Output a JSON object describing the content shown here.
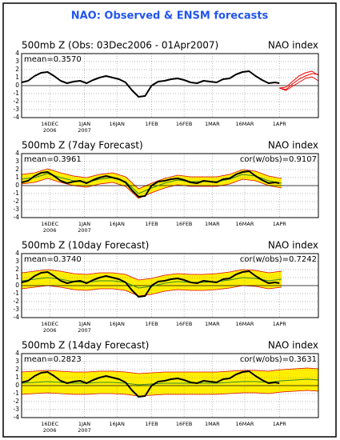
{
  "title": "NAO: Observed & ENSM forecasts",
  "chart_data": [
    {
      "type": "line",
      "title": "500mb Z (Obs: 03Dec2006 - 01Apr2007)",
      "index_label": "NAO index",
      "mean_label": "mean=0.3570",
      "xlim": [
        0,
        137
      ],
      "ylim": [
        -4,
        4
      ],
      "yticks": [
        -4,
        -3,
        -2,
        -1,
        0,
        1,
        2,
        3,
        4
      ],
      "grid": true,
      "xticks": [
        {
          "value": 13,
          "label": "16DEC\n2006"
        },
        {
          "value": 29,
          "label": "1JAN\n2007"
        },
        {
          "value": 44,
          "label": "16JAN"
        },
        {
          "value": 60,
          "label": "1FEB"
        },
        {
          "value": 75,
          "label": "16FEB"
        },
        {
          "value": 88,
          "label": "1MAR"
        },
        {
          "value": 103,
          "label": "16MAR"
        },
        {
          "value": 119,
          "label": "1APR"
        }
      ],
      "bands": [],
      "series": [
        {
          "color": "#000000",
          "width": 2,
          "x": [
            0,
            3,
            6,
            9,
            12,
            15,
            18,
            21,
            24,
            27,
            30,
            33,
            36,
            39,
            42,
            45,
            48,
            51,
            54,
            57,
            60,
            63,
            66,
            69,
            72,
            75,
            78,
            81,
            84,
            87,
            90,
            93,
            96,
            99,
            102,
            105,
            108,
            111,
            114,
            117,
            119
          ],
          "values": [
            0.4,
            0.6,
            1.2,
            1.6,
            1.7,
            1.2,
            0.6,
            0.3,
            0.5,
            0.6,
            0.3,
            0.7,
            1.0,
            1.2,
            1.0,
            0.8,
            0.4,
            -0.6,
            -1.4,
            -1.3,
            0.0,
            0.5,
            0.6,
            0.8,
            0.9,
            0.7,
            0.4,
            0.3,
            0.6,
            0.5,
            0.4,
            0.8,
            0.9,
            1.4,
            1.7,
            1.8,
            1.2,
            0.7,
            0.3,
            0.4,
            0.3
          ]
        },
        {
          "color": "#ee0000",
          "width": 1,
          "x": [
            119,
            122,
            125,
            128,
            131,
            134,
            137
          ],
          "values": [
            -0.3,
            -0.5,
            0.2,
            0.8,
            1.2,
            1.5,
            1.4
          ]
        },
        {
          "color": "#ee0000",
          "width": 1,
          "x": [
            119,
            122,
            125,
            128,
            131,
            134,
            137
          ],
          "values": [
            -0.3,
            -0.2,
            0.5,
            1.2,
            1.6,
            1.8,
            1.3
          ]
        },
        {
          "color": "#ee0000",
          "width": 1,
          "x": [
            119,
            122,
            125,
            128,
            131,
            134,
            137
          ],
          "values": [
            -0.3,
            -0.6,
            -0.1,
            0.4,
            0.9,
            1.1,
            0.6
          ]
        }
      ]
    },
    {
      "type": "line",
      "title": "500mb Z (7day Forecast)",
      "index_label": "NAO index",
      "mean_label": "mean=0.3961",
      "cor_label": "cor(w/obs)=0.9107",
      "xlim": [
        0,
        137
      ],
      "ylim": [
        -4,
        4
      ],
      "yticks": [
        -4,
        -3,
        -2,
        -1,
        0,
        1,
        2,
        3,
        4
      ],
      "grid": true,
      "xticks": [
        {
          "value": 13,
          "label": "16DEC\n2006"
        },
        {
          "value": 29,
          "label": "1JAN\n2007"
        },
        {
          "value": 44,
          "label": "16JAN"
        },
        {
          "value": 60,
          "label": "1FEB"
        },
        {
          "value": 75,
          "label": "16FEB"
        },
        {
          "value": 88,
          "label": "1MAR"
        },
        {
          "value": 103,
          "label": "16MAR"
        },
        {
          "value": 119,
          "label": "1APR"
        }
      ],
      "bands": [
        {
          "color": "#ffee00",
          "edge_color": "#dd0000",
          "x": [
            0,
            6,
            12,
            18,
            24,
            30,
            36,
            42,
            48,
            54,
            60,
            66,
            72,
            78,
            84,
            90,
            96,
            102,
            108,
            114,
            120
          ],
          "lower": [
            0.2,
            0.4,
            0.9,
            0.4,
            0.0,
            -0.2,
            0.2,
            0.4,
            -0.1,
            -1.6,
            -0.9,
            -0.3,
            0.1,
            -0.1,
            -0.1,
            -0.1,
            0.2,
            0.8,
            0.6,
            0.0,
            -0.3
          ],
          "upper": [
            1.4,
            1.6,
            2.1,
            1.6,
            1.2,
            1.0,
            1.4,
            1.6,
            1.1,
            -0.4,
            0.3,
            0.9,
            1.3,
            1.1,
            1.1,
            1.1,
            1.4,
            2.0,
            1.8,
            1.2,
            0.9
          ]
        }
      ],
      "series": [
        {
          "color": "#2e8b2e",
          "width": 1,
          "x": [
            0,
            6,
            12,
            18,
            24,
            30,
            36,
            42,
            48,
            54,
            60,
            66,
            72,
            78,
            84,
            90,
            96,
            102,
            108,
            114,
            120
          ],
          "values": [
            0.8,
            1.0,
            1.5,
            1.0,
            0.6,
            0.4,
            0.8,
            1.0,
            0.5,
            -1.0,
            -0.3,
            0.3,
            0.7,
            0.5,
            0.5,
            0.5,
            0.8,
            1.4,
            1.2,
            0.6,
            0.3
          ]
        },
        {
          "color": "#000000",
          "width": 2,
          "x": [
            0,
            3,
            6,
            9,
            12,
            15,
            18,
            21,
            24,
            27,
            30,
            33,
            36,
            39,
            42,
            45,
            48,
            51,
            54,
            57,
            60,
            63,
            66,
            69,
            72,
            75,
            78,
            81,
            84,
            87,
            90,
            93,
            96,
            99,
            102,
            105,
            108,
            111,
            114,
            117,
            119
          ],
          "values": [
            0.4,
            0.6,
            1.2,
            1.6,
            1.7,
            1.2,
            0.6,
            0.3,
            0.5,
            0.6,
            0.3,
            0.7,
            1.0,
            1.2,
            1.0,
            0.8,
            0.4,
            -0.6,
            -1.4,
            -1.3,
            0.0,
            0.5,
            0.6,
            0.8,
            0.9,
            0.7,
            0.4,
            0.3,
            0.6,
            0.5,
            0.4,
            0.8,
            0.9,
            1.4,
            1.7,
            1.8,
            1.2,
            0.7,
            0.3,
            0.4,
            0.3
          ]
        }
      ]
    },
    {
      "type": "line",
      "title": "500mb Z (10day Forecast)",
      "index_label": "NAO index",
      "mean_label": "mean=0.3740",
      "cor_label": "cor(w/obs)=0.7242",
      "xlim": [
        0,
        137
      ],
      "ylim": [
        -4,
        4
      ],
      "yticks": [
        -4,
        -3,
        -2,
        -1,
        0,
        1,
        2,
        3,
        4
      ],
      "grid": true,
      "xticks": [
        {
          "value": 13,
          "label": "16DEC\n2006"
        },
        {
          "value": 29,
          "label": "1JAN\n2007"
        },
        {
          "value": 44,
          "label": "16JAN"
        },
        {
          "value": 60,
          "label": "1FEB"
        },
        {
          "value": 75,
          "label": "16FEB"
        },
        {
          "value": 88,
          "label": "1MAR"
        },
        {
          "value": 103,
          "label": "16MAR"
        },
        {
          "value": 119,
          "label": "1APR"
        }
      ],
      "bands": [
        {
          "color": "#ffee00",
          "edge_color": "#dd0000",
          "x": [
            0,
            6,
            12,
            18,
            24,
            30,
            36,
            42,
            48,
            54,
            60,
            66,
            72,
            78,
            84,
            90,
            96,
            102,
            108,
            114,
            120
          ],
          "lower": [
            -0.4,
            -0.2,
            0.0,
            -0.2,
            -0.5,
            -0.6,
            -0.4,
            -0.4,
            -0.6,
            -1.3,
            -1.1,
            -0.7,
            -0.5,
            -0.6,
            -0.6,
            -0.5,
            -0.3,
            0.0,
            -0.1,
            -0.4,
            -0.2
          ],
          "upper": [
            1.6,
            1.8,
            2.0,
            1.8,
            1.5,
            1.4,
            1.6,
            1.6,
            1.4,
            0.7,
            0.9,
            1.3,
            1.5,
            1.4,
            1.4,
            1.5,
            1.7,
            2.0,
            1.9,
            1.6,
            1.8
          ]
        }
      ],
      "series": [
        {
          "color": "#2e8b2e",
          "width": 1,
          "x": [
            0,
            6,
            12,
            18,
            24,
            30,
            36,
            42,
            48,
            54,
            60,
            66,
            72,
            78,
            84,
            90,
            96,
            102,
            108,
            114,
            120
          ],
          "values": [
            0.6,
            0.8,
            1.0,
            0.8,
            0.5,
            0.4,
            0.6,
            0.6,
            0.4,
            -0.3,
            -0.1,
            0.3,
            0.5,
            0.4,
            0.4,
            0.5,
            0.7,
            1.0,
            0.9,
            0.6,
            0.8
          ]
        },
        {
          "color": "#000000",
          "width": 2,
          "x": [
            0,
            3,
            6,
            9,
            12,
            15,
            18,
            21,
            24,
            27,
            30,
            33,
            36,
            39,
            42,
            45,
            48,
            51,
            54,
            57,
            60,
            63,
            66,
            69,
            72,
            75,
            78,
            81,
            84,
            87,
            90,
            93,
            96,
            99,
            102,
            105,
            108,
            111,
            114,
            117,
            119
          ],
          "values": [
            0.4,
            0.6,
            1.2,
            1.6,
            1.7,
            1.2,
            0.6,
            0.3,
            0.5,
            0.6,
            0.3,
            0.7,
            1.0,
            1.2,
            1.0,
            0.8,
            0.4,
            -0.6,
            -1.4,
            -1.3,
            0.0,
            0.5,
            0.6,
            0.8,
            0.9,
            0.7,
            0.4,
            0.3,
            0.6,
            0.5,
            0.4,
            0.8,
            0.9,
            1.4,
            1.7,
            1.8,
            1.2,
            0.7,
            0.3,
            0.4,
            0.3
          ]
        }
      ]
    },
    {
      "type": "line",
      "title": "500mb Z (14day Forecast)",
      "index_label": "NAO index",
      "mean_label": "mean=0.2823",
      "cor_label": "cor(w/obs)=0.3631",
      "xlim": [
        0,
        137
      ],
      "ylim": [
        -4,
        4
      ],
      "yticks": [
        -4,
        -3,
        -2,
        -1,
        0,
        1,
        2,
        3,
        4
      ],
      "grid": true,
      "xticks": [
        {
          "value": 13,
          "label": "16DEC\n2006"
        },
        {
          "value": 29,
          "label": "1JAN\n2007"
        },
        {
          "value": 44,
          "label": "16JAN"
        },
        {
          "value": 60,
          "label": "1FEB"
        },
        {
          "value": 75,
          "label": "16FEB"
        },
        {
          "value": 88,
          "label": "1MAR"
        },
        {
          "value": 103,
          "label": "16MAR"
        },
        {
          "value": 119,
          "label": "1APR"
        }
      ],
      "bands": [
        {
          "color": "#ffee00",
          "edge_color": "#dd0000",
          "x": [
            0,
            6,
            12,
            18,
            24,
            30,
            36,
            42,
            48,
            54,
            60,
            66,
            72,
            78,
            84,
            90,
            96,
            102,
            108,
            114,
            120,
            126,
            132,
            137
          ],
          "lower": [
            -1.1,
            -1.0,
            -0.9,
            -1.0,
            -1.1,
            -1.1,
            -1.0,
            -1.0,
            -1.1,
            -1.3,
            -1.2,
            -1.1,
            -1.1,
            -1.1,
            -1.1,
            -1.1,
            -1.0,
            -0.9,
            -0.9,
            -1.0,
            -0.8,
            -0.7,
            -0.6,
            -0.7
          ],
          "upper": [
            1.7,
            1.8,
            1.9,
            1.8,
            1.7,
            1.7,
            1.8,
            1.8,
            1.7,
            1.5,
            1.6,
            1.7,
            1.7,
            1.7,
            1.7,
            1.7,
            1.8,
            1.9,
            1.9,
            1.8,
            2.0,
            2.1,
            2.2,
            2.1
          ]
        }
      ],
      "series": [
        {
          "color": "#2e8b2e",
          "width": 1,
          "x": [
            0,
            6,
            12,
            18,
            24,
            30,
            36,
            42,
            48,
            54,
            60,
            66,
            72,
            78,
            84,
            90,
            96,
            102,
            108,
            114,
            120,
            126,
            132,
            137
          ],
          "values": [
            0.3,
            0.4,
            0.5,
            0.4,
            0.3,
            0.3,
            0.4,
            0.4,
            0.3,
            0.1,
            0.2,
            0.3,
            0.3,
            0.3,
            0.3,
            0.3,
            0.4,
            0.5,
            0.5,
            0.4,
            0.6,
            0.7,
            0.8,
            0.7
          ]
        },
        {
          "color": "#000000",
          "width": 2,
          "x": [
            0,
            3,
            6,
            9,
            12,
            15,
            18,
            21,
            24,
            27,
            30,
            33,
            36,
            39,
            42,
            45,
            48,
            51,
            54,
            57,
            60,
            63,
            66,
            69,
            72,
            75,
            78,
            81,
            84,
            87,
            90,
            93,
            96,
            99,
            102,
            105,
            108,
            111,
            114,
            117,
            119
          ],
          "values": [
            0.4,
            0.6,
            1.2,
            1.6,
            1.7,
            1.2,
            0.6,
            0.3,
            0.5,
            0.6,
            0.3,
            0.7,
            1.0,
            1.2,
            1.0,
            0.8,
            0.4,
            -0.6,
            -1.4,
            -1.3,
            0.0,
            0.5,
            0.6,
            0.8,
            0.9,
            0.7,
            0.4,
            0.3,
            0.6,
            0.5,
            0.4,
            0.8,
            0.9,
            1.4,
            1.7,
            1.8,
            1.2,
            0.7,
            0.3,
            0.4,
            0.3
          ]
        }
      ]
    }
  ]
}
